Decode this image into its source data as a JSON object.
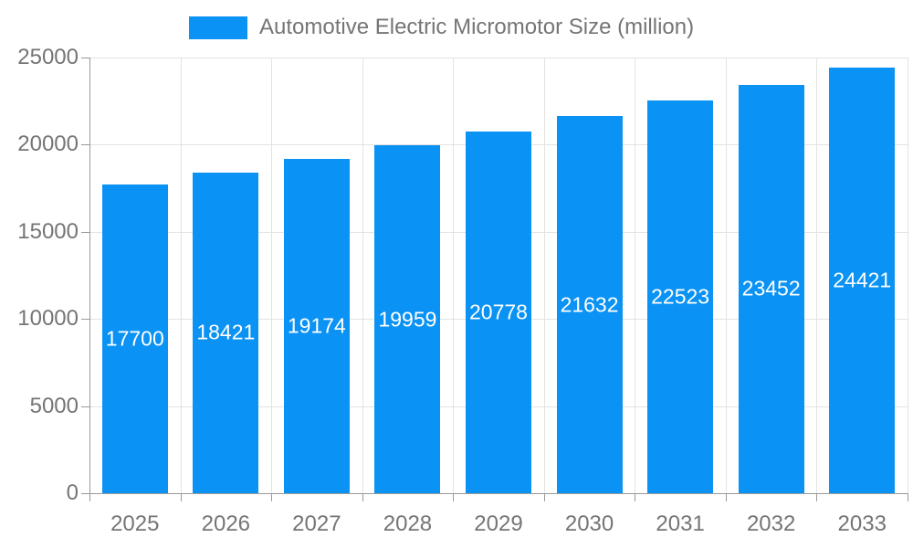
{
  "legend": {
    "label": "Automotive Electric Micromotor Size (million)"
  },
  "colors": {
    "bar": "#0a92f4",
    "grid": "#e3e3e3",
    "axis": "#9a9a9a",
    "text": "#757575",
    "value_label": "#ffffff",
    "background": "#ffffff"
  },
  "chart_data": {
    "type": "bar",
    "title": "Automotive Electric Micromotor Size (million)",
    "categories": [
      "2025",
      "2026",
      "2027",
      "2028",
      "2029",
      "2030",
      "2031",
      "2032",
      "2033"
    ],
    "values": [
      17700,
      18421,
      19174,
      19959,
      20778,
      21632,
      22523,
      23452,
      24421
    ],
    "xlabel": "",
    "ylabel": "",
    "ylim": [
      0,
      25000
    ],
    "yticks": [
      0,
      5000,
      10000,
      15000,
      20000,
      25000
    ],
    "grid": true,
    "legend_position": "top",
    "value_label_position": "inside-center"
  }
}
